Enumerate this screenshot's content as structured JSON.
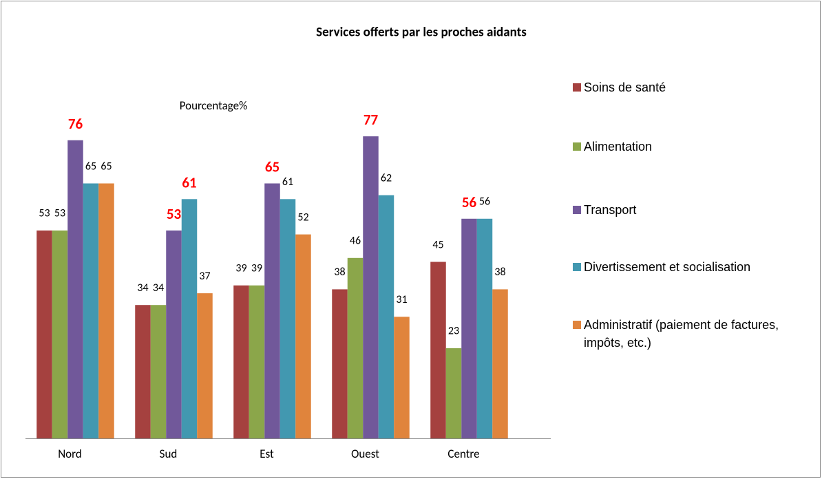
{
  "chart_data": {
    "type": "bar",
    "title": "Services offerts par les proches aidants",
    "ylabel": "Pourcentage%",
    "categories": [
      "Nord",
      "Sud",
      "Est",
      "Ouest",
      "Centre"
    ],
    "series": [
      {
        "name": "Soins de santé",
        "color": "#a5413f",
        "values": [
          53,
          34,
          39,
          38,
          45
        ]
      },
      {
        "name": "Alimentation",
        "color": "#8ba64a",
        "values": [
          53,
          34,
          39,
          46,
          23
        ]
      },
      {
        "name": "Transport",
        "color": "#71589a",
        "values": [
          76,
          53,
          65,
          77,
          56
        ]
      },
      {
        "name": "Divertissement et socialisation",
        "color": "#4298b0",
        "values": [
          65,
          61,
          61,
          62,
          56
        ]
      },
      {
        "name": "Administratif (paiement de factures, impôts, etc.)",
        "color": "#e0843c",
        "values": [
          65,
          37,
          52,
          31,
          38
        ]
      }
    ],
    "ylim": [
      0,
      90
    ],
    "highlight_color": "#ff0000",
    "highlights": [
      {
        "series": 2,
        "category": 0
      },
      {
        "series": 2,
        "category": 1
      },
      {
        "series": 3,
        "category": 1
      },
      {
        "series": 2,
        "category": 2
      },
      {
        "series": 2,
        "category": 3
      },
      {
        "series": 2,
        "category": 4
      }
    ],
    "legend": "right"
  }
}
